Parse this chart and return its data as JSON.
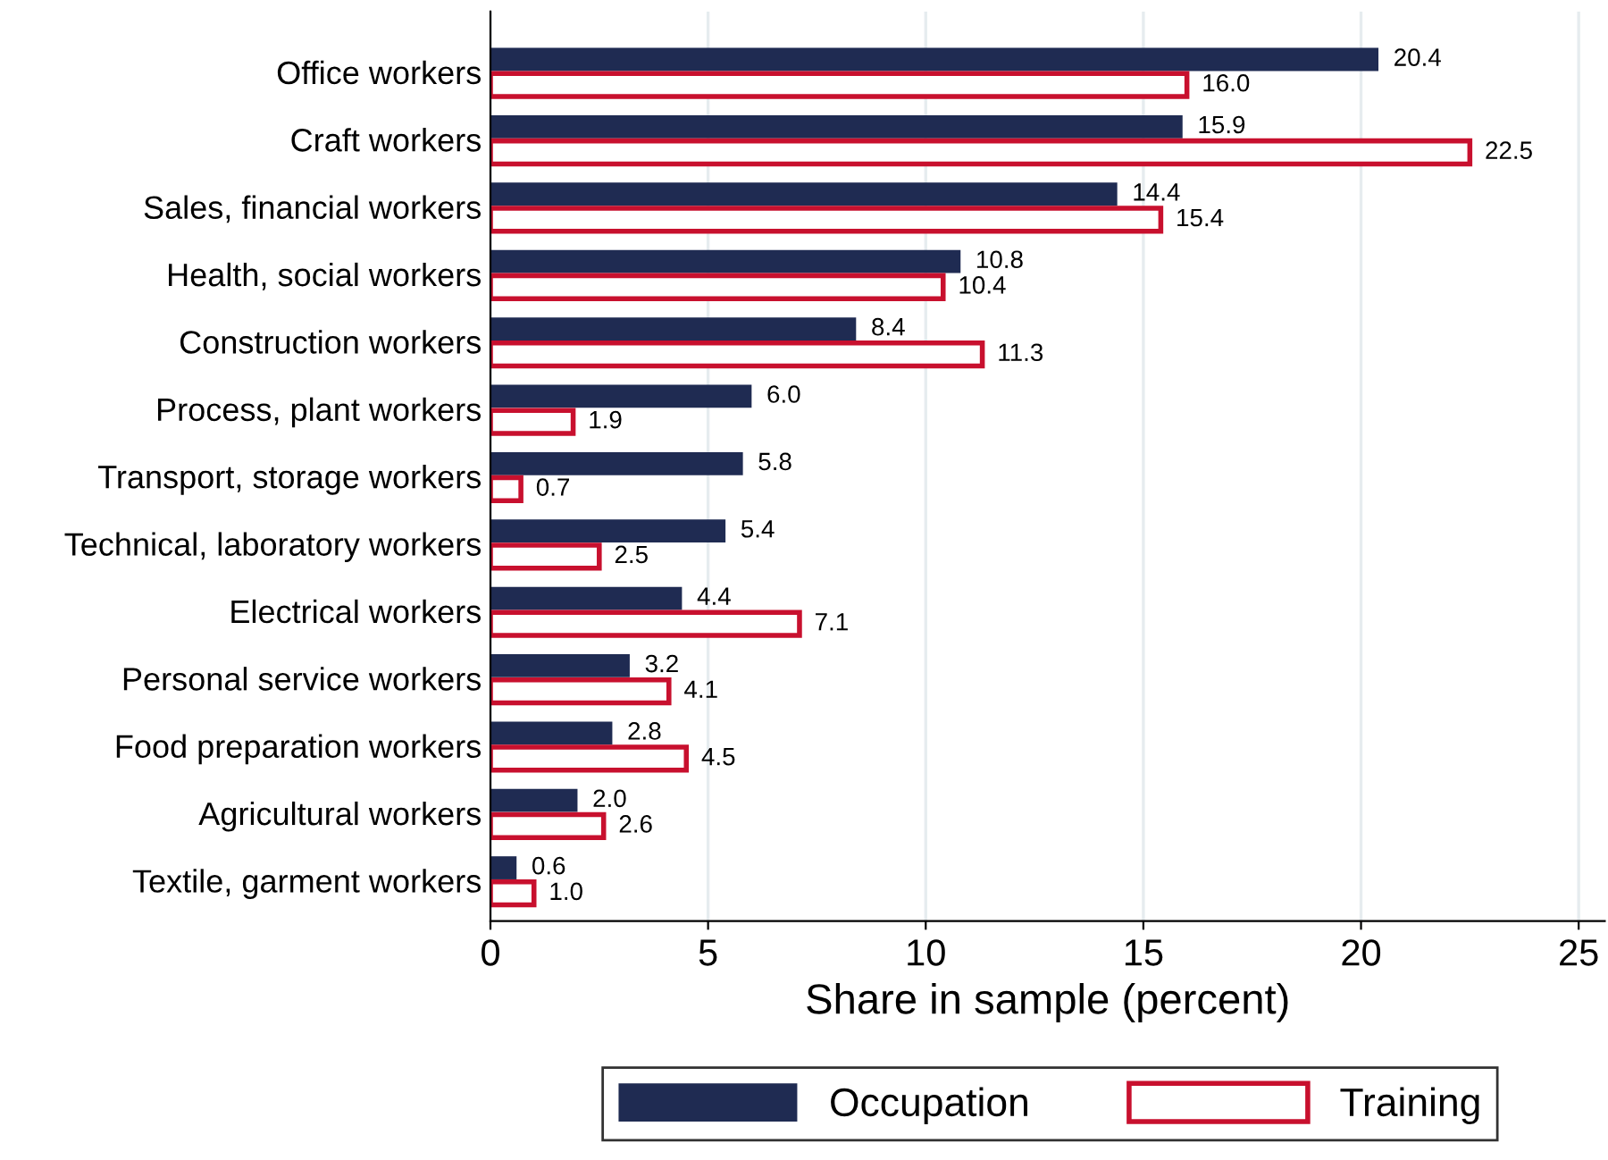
{
  "chart_data": {
    "type": "bar",
    "orientation": "horizontal",
    "xlabel": "Share in sample (percent)",
    "categories": [
      "Office workers",
      "Craft workers",
      "Sales, financial workers",
      "Health, social workers",
      "Construction workers",
      "Process, plant workers",
      "Transport, storage workers",
      "Technical, laboratory workers",
      "Electrical workers",
      "Personal service workers",
      "Food preparation workers",
      "Agricultural workers",
      "Textile, garment workers"
    ],
    "series": [
      {
        "name": "Occupation",
        "color": "#1f2b52",
        "values": [
          20.4,
          15.9,
          14.4,
          10.8,
          8.4,
          6.0,
          5.8,
          5.4,
          4.4,
          3.2,
          2.8,
          2.0,
          0.6
        ],
        "value_labels": [
          "20.4",
          "15.9",
          "14.4",
          "10.8",
          "8.4",
          "6.0",
          "5.8",
          "5.4",
          "4.4",
          "3.2",
          "2.8",
          "2.0",
          "0.6"
        ]
      },
      {
        "name": "Training",
        "color": "#c8102e",
        "values": [
          16.0,
          22.5,
          15.4,
          10.4,
          11.3,
          1.9,
          0.7,
          2.5,
          7.1,
          4.1,
          4.5,
          2.6,
          1.0
        ],
        "value_labels": [
          "16.0",
          "22.5",
          "15.4",
          "10.4",
          "11.3",
          "1.9",
          "0.7",
          "2.5",
          "7.1",
          "4.1",
          "4.5",
          "2.6",
          "1.0"
        ]
      }
    ],
    "xlim": [
      0,
      25.6
    ],
    "xticks": [
      0,
      5,
      10,
      15,
      20,
      25
    ],
    "grid": "x",
    "legend": "bottom"
  }
}
